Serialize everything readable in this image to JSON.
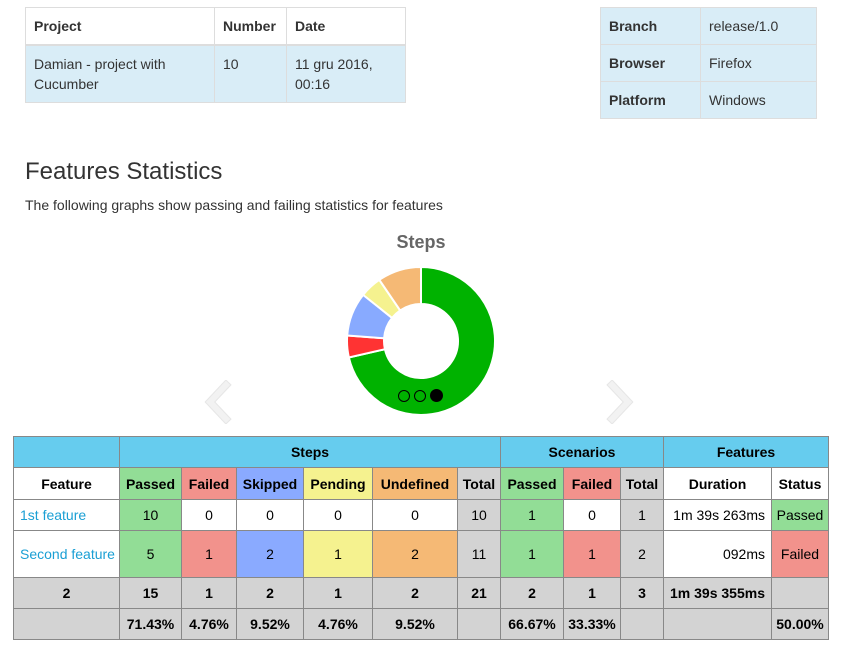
{
  "project_info": {
    "headers": [
      "Project",
      "Number",
      "Date"
    ],
    "project": "Damian - project with Cucumber",
    "number": "10",
    "date": "11 gru 2016, 00:16"
  },
  "environment": {
    "rows": [
      {
        "label": "Branch",
        "value": "release/1.0"
      },
      {
        "label": "Browser",
        "value": "Firefox"
      },
      {
        "label": "Platform",
        "value": "Windows"
      }
    ]
  },
  "section": {
    "title": "Features Statistics",
    "description": "The following graphs show passing and failing statistics for features"
  },
  "carousel": {
    "slide_count": 3,
    "active_index": 2,
    "prev_icon": "chevron-left-icon",
    "next_icon": "chevron-right-icon"
  },
  "chart_data": {
    "type": "pie",
    "title": "Steps",
    "donut": true,
    "categories": [
      "Passed",
      "Failed",
      "Skipped",
      "Pending",
      "Undefined"
    ],
    "values": [
      15,
      1,
      2,
      1,
      2
    ],
    "percentages": [
      71.43,
      4.76,
      9.52,
      4.76,
      9.52
    ],
    "colors": [
      "#00b200",
      "#ff3333",
      "#88aaff",
      "#f5f28f",
      "#f5b975"
    ]
  },
  "stats_table": {
    "groups": {
      "steps": "Steps",
      "scenarios": "Scenarios",
      "features": "Features"
    },
    "headers": {
      "feature": "Feature",
      "steps_passed": "Passed",
      "steps_failed": "Failed",
      "steps_skipped": "Skipped",
      "steps_pending": "Pending",
      "steps_undefined": "Undefined",
      "steps_total": "Total",
      "sc_passed": "Passed",
      "sc_failed": "Failed",
      "sc_total": "Total",
      "duration": "Duration",
      "status": "Status"
    },
    "rows": [
      {
        "feature": "1st feature",
        "passed": "10",
        "failed": "0",
        "skipped": "0",
        "pending": "0",
        "undefined": "0",
        "total": "10",
        "sc_passed": "1",
        "sc_failed": "0",
        "sc_total": "1",
        "duration": "1m 39s 263ms",
        "status": "Passed"
      },
      {
        "feature": "Second feature",
        "passed": "5",
        "failed": "1",
        "skipped": "2",
        "pending": "1",
        "undefined": "2",
        "total": "11",
        "sc_passed": "1",
        "sc_failed": "1",
        "sc_total": "2",
        "duration": "092ms",
        "status": "Failed"
      }
    ],
    "totals": {
      "feature": "2",
      "passed": "15",
      "failed": "1",
      "skipped": "2",
      "pending": "1",
      "undefined": "2",
      "total": "21",
      "sc_passed": "2",
      "sc_failed": "1",
      "sc_total": "3",
      "duration": "1m 39s 355ms",
      "status": ""
    },
    "percentages": {
      "feature": "",
      "passed": "71.43%",
      "failed": "4.76%",
      "skipped": "9.52%",
      "pending": "4.76%",
      "undefined": "9.52%",
      "total": "",
      "sc_passed": "66.67%",
      "sc_failed": "33.33%",
      "sc_total": "",
      "duration": "",
      "status": "50.00%"
    }
  }
}
